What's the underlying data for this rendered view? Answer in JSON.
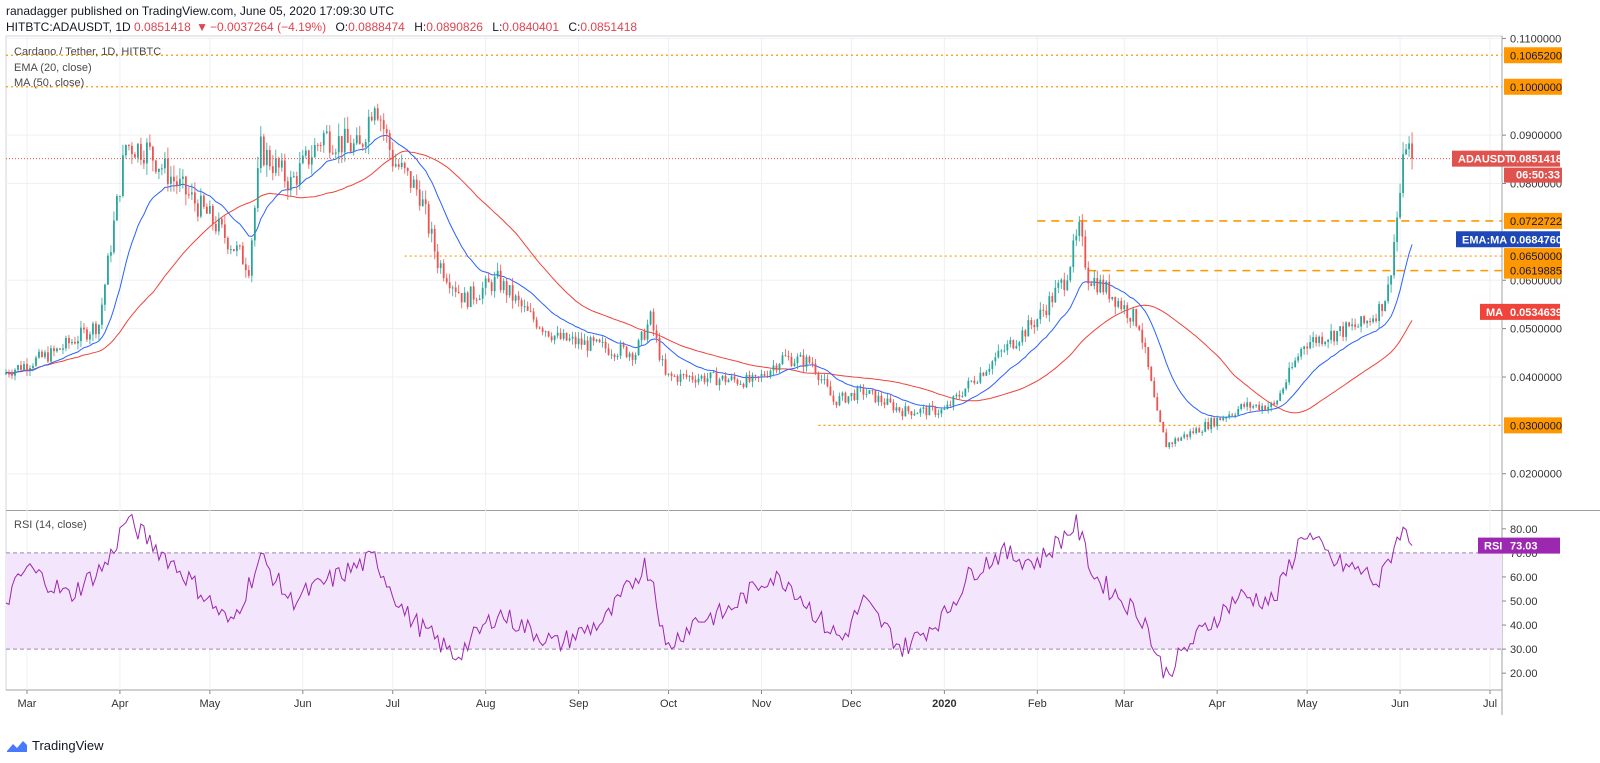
{
  "header": {
    "line1": "ranadagger published on TradingView.com, June 05, 2020 17:09:30 UTC",
    "symbol": "HITBTC:ADAUSDT, 1D",
    "last": "0.0851418",
    "change": "−0.0037264 (−4.19%)",
    "o_label": "O:",
    "o": "0.0888474",
    "h_label": "H:",
    "h": "0.0890826",
    "l_label": "L:",
    "l": "0.0840401",
    "c_label": "C:",
    "c": "0.0851418"
  },
  "legend": {
    "title": "Cardano / Tether, 1D, HITBTC",
    "ema": "EMA (20, close)",
    "ma": "MA (50, close)",
    "rsi": "RSI (14, close)"
  },
  "footer": {
    "brand": "TradingView"
  },
  "colors": {
    "up": "#26a69a",
    "down": "#ef5350",
    "ema": "#2962ff",
    "ma": "#f0433a",
    "level": "#ff9800",
    "rsi": "#9c27b0",
    "rsi_band": "#f3e5fc",
    "price_tag": "#e0524d"
  },
  "chart_data": {
    "type": "candlestick",
    "title": "Cardano / Tether, 1D, HITBTC",
    "price_axis": {
      "ylim": [
        0.0125,
        0.1105
      ],
      "ticks": [
        "0.1100000",
        "0.0900000",
        "0.0800000",
        "0.0600000",
        "0.0500000",
        "0.0400000",
        "0.0200000"
      ],
      "tick_values": [
        0.11,
        0.09,
        0.08,
        0.06,
        0.05,
        0.04,
        0.02
      ]
    },
    "time_axis": {
      "labels": [
        "Mar",
        "Apr",
        "May",
        "Jun",
        "Jul",
        "Aug",
        "Sep",
        "Oct",
        "Nov",
        "Dec",
        "2020",
        "Feb",
        "Mar",
        "Apr",
        "May",
        "Jun",
        "Jul"
      ],
      "start": "2019-02-22",
      "end": "2020-06-05"
    },
    "price_anchors": [
      [
        "2019-02-22",
        0.041
      ],
      [
        "2019-03-10",
        0.045
      ],
      [
        "2019-03-25",
        0.051
      ],
      [
        "2019-04-03",
        0.088
      ],
      [
        "2019-04-10",
        0.087
      ],
      [
        "2019-04-20",
        0.08
      ],
      [
        "2019-05-01",
        0.073
      ],
      [
        "2019-05-14",
        0.063
      ],
      [
        "2019-05-18",
        0.087
      ],
      [
        "2019-05-28",
        0.08
      ],
      [
        "2019-06-08",
        0.09
      ],
      [
        "2019-06-20",
        0.087
      ],
      [
        "2019-06-25",
        0.098
      ],
      [
        "2019-07-01",
        0.085
      ],
      [
        "2019-07-10",
        0.078
      ],
      [
        "2019-07-16",
        0.064
      ],
      [
        "2019-07-25",
        0.056
      ],
      [
        "2019-08-05",
        0.06
      ],
      [
        "2019-08-15",
        0.053
      ],
      [
        "2019-08-25",
        0.048
      ],
      [
        "2019-09-10",
        0.046
      ],
      [
        "2019-09-20",
        0.045
      ],
      [
        "2019-09-25",
        0.052
      ],
      [
        "2019-09-30",
        0.04
      ],
      [
        "2019-10-10",
        0.04
      ],
      [
        "2019-10-30",
        0.039
      ],
      [
        "2019-11-08",
        0.044
      ],
      [
        "2019-11-18",
        0.043
      ],
      [
        "2019-11-25",
        0.035
      ],
      [
        "2019-12-05",
        0.037
      ],
      [
        "2019-12-18",
        0.033
      ],
      [
        "2020-01-01",
        0.033
      ],
      [
        "2020-01-10",
        0.039
      ],
      [
        "2020-01-20",
        0.045
      ],
      [
        "2020-02-01",
        0.052
      ],
      [
        "2020-02-10",
        0.06
      ],
      [
        "2020-02-15",
        0.07
      ],
      [
        "2020-02-18",
        0.061
      ],
      [
        "2020-02-26",
        0.057
      ],
      [
        "2020-03-06",
        0.051
      ],
      [
        "2020-03-12",
        0.032
      ],
      [
        "2020-03-15",
        0.026
      ],
      [
        "2020-03-25",
        0.029
      ],
      [
        "2020-04-10",
        0.034
      ],
      [
        "2020-04-20",
        0.034
      ],
      [
        "2020-04-30",
        0.047
      ],
      [
        "2020-05-10",
        0.049
      ],
      [
        "2020-05-20",
        0.051
      ],
      [
        "2020-05-25",
        0.054
      ],
      [
        "2020-05-28",
        0.058
      ],
      [
        "2020-06-01",
        0.078
      ],
      [
        "2020-06-03",
        0.089
      ],
      [
        "2020-06-05",
        0.0851418
      ]
    ],
    "levels": [
      {
        "value": 0.10652,
        "label": "0.1065200",
        "style": "dotted",
        "from": "2019-02-22"
      },
      {
        "value": 0.1,
        "label": "0.1000000",
        "style": "dotted",
        "from": "2019-02-22"
      },
      {
        "value": 0.0722722,
        "label": "0.0722722",
        "style": "dashed",
        "from": "2020-02-01"
      },
      {
        "value": 0.065,
        "label": "0.0650000",
        "style": "dotted",
        "from": "2019-07-05"
      },
      {
        "value": 0.0619885,
        "label": "0.0619885",
        "style": "dashed",
        "from": "2020-02-18"
      },
      {
        "value": 0.03,
        "label": "0.0300000",
        "style": "dotted",
        "from": "2019-11-20"
      }
    ],
    "last_price": {
      "value": 0.0851418,
      "label": "ADAUSDT",
      "text": "0.0851418",
      "countdown": "06:50:33"
    },
    "ema20": {
      "name": "EMA (20, close)",
      "last": 0.068476,
      "tag": "EMA:MA",
      "text": "0.0684760"
    },
    "ma50": {
      "name": "MA (50, close)",
      "last": 0.0534639,
      "tag": "MA",
      "text": "0.0534639"
    },
    "rsi": {
      "name": "RSI (14, close)",
      "ylim": [
        13,
        87
      ],
      "ticks": [
        "80.00",
        "70.00",
        "60.00",
        "50.00",
        "40.00",
        "30.00",
        "20.00"
      ],
      "tick_values": [
        80,
        70,
        60,
        50,
        40,
        30,
        20
      ],
      "band": [
        30,
        70
      ],
      "last": 73.03,
      "last_text": "73.03",
      "tag": "RSI",
      "anchors": [
        [
          "2019-02-22",
          50
        ],
        [
          "2019-03-01",
          64
        ],
        [
          "2019-03-15",
          52
        ],
        [
          "2019-03-28",
          66
        ],
        [
          "2019-04-03",
          84
        ],
        [
          "2019-04-10",
          76
        ],
        [
          "2019-04-25",
          58
        ],
        [
          "2019-05-08",
          40
        ],
        [
          "2019-05-18",
          68
        ],
        [
          "2019-05-28",
          50
        ],
        [
          "2019-06-12",
          60
        ],
        [
          "2019-06-25",
          68
        ],
        [
          "2019-07-05",
          45
        ],
        [
          "2019-07-17",
          32
        ],
        [
          "2019-07-22",
          27
        ],
        [
          "2019-08-05",
          45
        ],
        [
          "2019-08-25",
          32
        ],
        [
          "2019-09-10",
          42
        ],
        [
          "2019-09-23",
          65
        ],
        [
          "2019-09-26",
          58
        ],
        [
          "2019-09-30",
          30
        ],
        [
          "2019-10-10",
          42
        ],
        [
          "2019-10-20",
          45
        ],
        [
          "2019-11-03",
          60
        ],
        [
          "2019-11-10",
          58
        ],
        [
          "2019-11-22",
          40
        ],
        [
          "2019-11-28",
          34
        ],
        [
          "2019-12-05",
          50
        ],
        [
          "2019-12-18",
          30
        ],
        [
          "2020-01-01",
          44
        ],
        [
          "2020-01-10",
          62
        ],
        [
          "2020-01-20",
          70
        ],
        [
          "2020-02-01",
          66
        ],
        [
          "2020-02-14",
          82
        ],
        [
          "2020-02-20",
          60
        ],
        [
          "2020-02-28",
          52
        ],
        [
          "2020-03-08",
          42
        ],
        [
          "2020-03-12",
          26
        ],
        [
          "2020-03-15",
          20
        ],
        [
          "2020-03-25",
          35
        ],
        [
          "2020-04-08",
          52
        ],
        [
          "2020-04-20",
          50
        ],
        [
          "2020-04-30",
          79
        ],
        [
          "2020-05-10",
          66
        ],
        [
          "2020-05-20",
          62
        ],
        [
          "2020-05-25",
          57
        ],
        [
          "2020-06-01",
          79
        ],
        [
          "2020-06-03",
          78
        ],
        [
          "2020-06-05",
          73.03
        ]
      ]
    },
    "xlabel": "",
    "ylabel": ""
  }
}
